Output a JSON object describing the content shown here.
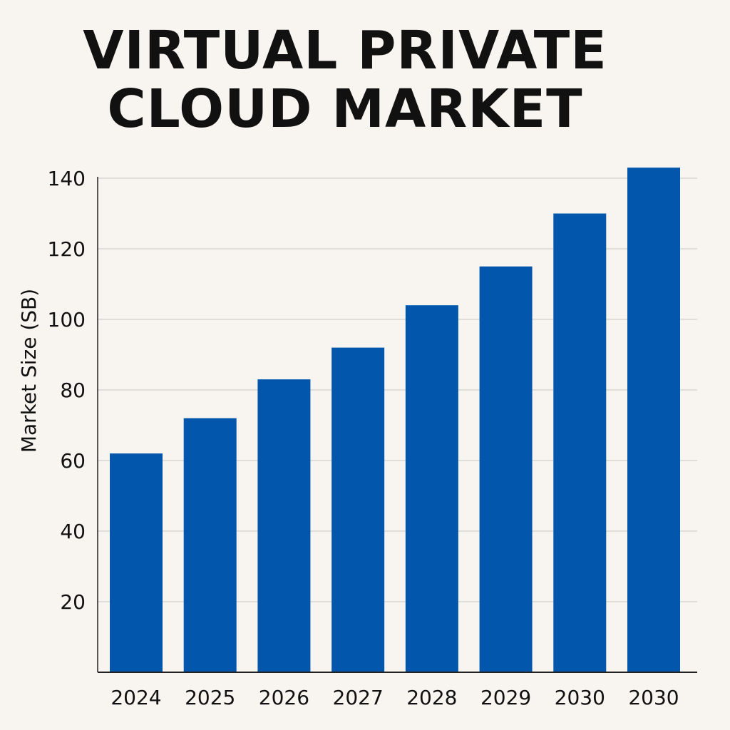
{
  "chart_data": {
    "type": "bar",
    "title_lines": [
      "VIRTUAL PRIVATE",
      "CLOUD MARKET"
    ],
    "ylabel": "Market Size (SB)",
    "xlabel": "",
    "categories": [
      "2024",
      "2025",
      "2026",
      "2027",
      "2028",
      "2029",
      "2030",
      "2030"
    ],
    "values": [
      62,
      72,
      83,
      92,
      104,
      115,
      130,
      143
    ],
    "ylim": [
      0,
      140
    ],
    "yticks": [
      20,
      40,
      60,
      80,
      100,
      120,
      140
    ],
    "grid": true,
    "legend": "none",
    "bar_color": "#0257ad"
  }
}
